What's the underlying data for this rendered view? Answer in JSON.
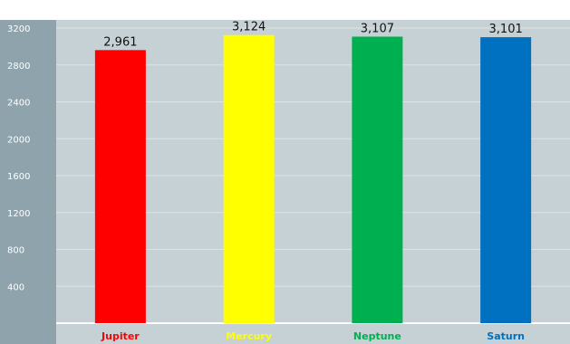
{
  "chart_data": {
    "type": "bar",
    "title": "",
    "xlabel": "",
    "ylabel": "",
    "categories": [
      "Jupiter",
      "Mercury",
      "Neptune",
      "Saturn"
    ],
    "values": [
      2961,
      3124,
      3107,
      3101
    ],
    "value_labels": [
      "2,961",
      "3,124",
      "3,107",
      "3,101"
    ],
    "colors": [
      "#ff0000",
      "#ffff00",
      "#00b050",
      "#0070c0"
    ],
    "ylim": [
      0,
      3200
    ],
    "yticks": [
      "400",
      "800",
      "1200",
      "1600",
      "2000",
      "2400",
      "2800",
      "3200"
    ],
    "grid": true,
    "legend": "none"
  }
}
